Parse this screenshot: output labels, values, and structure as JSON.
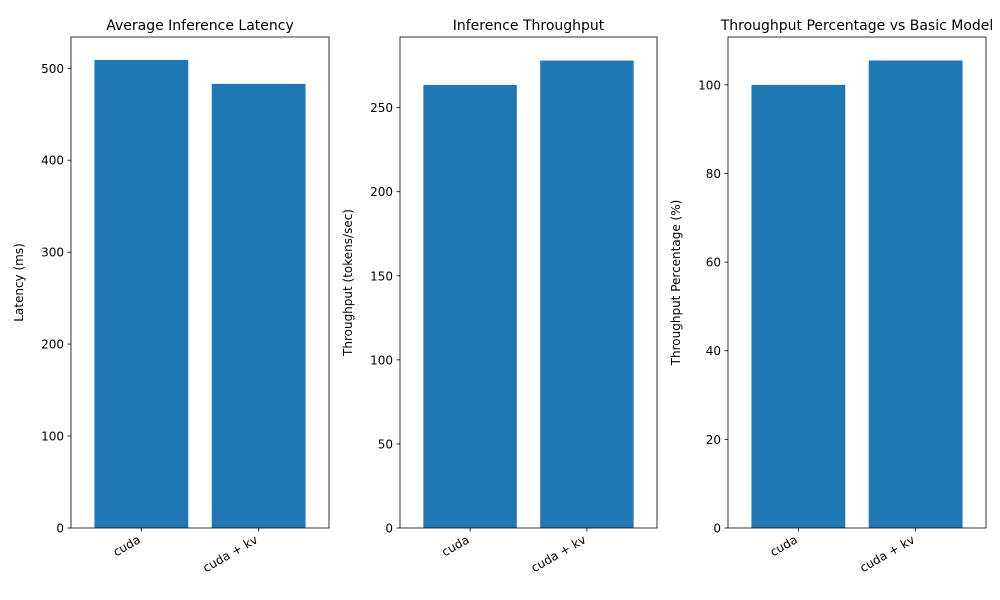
{
  "chart_data": [
    {
      "type": "bar",
      "title": "Average Inference Latency",
      "xlabel": "",
      "ylabel": "Latency (ms)",
      "categories": [
        "cuda",
        "cuda + kv"
      ],
      "values": [
        509,
        483
      ],
      "ylim": [
        0,
        534
      ],
      "yticks": [
        0,
        100,
        200,
        300,
        400,
        500
      ],
      "color": "#1f77b4",
      "grid": false
    },
    {
      "type": "bar",
      "title": "Inference Throughput",
      "xlabel": "",
      "ylabel": "Throughput (tokens/sec)",
      "categories": [
        "cuda",
        "cuda + kv"
      ],
      "values": [
        263.5,
        278
      ],
      "ylim": [
        0,
        292
      ],
      "yticks": [
        0,
        50,
        100,
        150,
        200,
        250
      ],
      "color": "#1f77b4",
      "grid": false
    },
    {
      "type": "bar",
      "title": "Throughput Percentage vs Basic Model",
      "xlabel": "",
      "ylabel": "Throughput Percentage (%)",
      "categories": [
        "cuda",
        "cuda + kv"
      ],
      "values": [
        100,
        105.5
      ],
      "ylim": [
        0,
        110.8
      ],
      "yticks": [
        0,
        20,
        40,
        60,
        80,
        100
      ],
      "color": "#1f77b4",
      "grid": false
    }
  ]
}
